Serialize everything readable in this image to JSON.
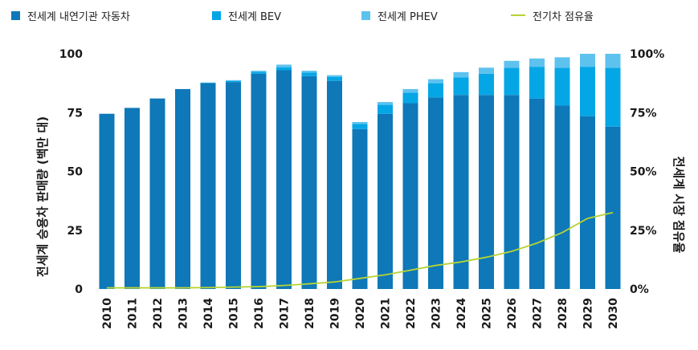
{
  "chart_data": {
    "type": "bar",
    "categories": [
      "2010",
      "2011",
      "2012",
      "2013",
      "2014",
      "2015",
      "2016",
      "2017",
      "2018",
      "2019",
      "2020",
      "2021",
      "2022",
      "2023",
      "2024",
      "2025",
      "2026",
      "2027",
      "2028",
      "2029",
      "2030"
    ],
    "series": [
      {
        "name": "전세계 내연기관 자동차",
        "kind": "stacked-bar",
        "axis": "left",
        "values": [
          74.5,
          77,
          81,
          85,
          87.5,
          88,
          91.5,
          93,
          90.5,
          88.5,
          68,
          74.5,
          79,
          81.5,
          82.5,
          82.5,
          82.5,
          81,
          78,
          73.5,
          69
        ]
      },
      {
        "name": "전세계 BEV",
        "kind": "stacked-bar",
        "axis": "left",
        "values": [
          0,
          0,
          0,
          0,
          0.2,
          0.5,
          0.8,
          1.3,
          1.5,
          1.6,
          2.2,
          3.8,
          4.5,
          6,
          7.5,
          9,
          11.5,
          13.5,
          16,
          21,
          25
        ]
      },
      {
        "name": "전세계 PHEV",
        "kind": "stacked-bar",
        "axis": "left",
        "values": [
          0,
          0,
          0,
          0,
          0.1,
          0.3,
          0.5,
          1.1,
          0.8,
          0.8,
          0.8,
          1.2,
          1.5,
          1.7,
          2.2,
          2.6,
          3,
          3.5,
          4.5,
          5.5,
          6
        ]
      },
      {
        "name": "전기차 점유율",
        "kind": "line",
        "axis": "right",
        "values": [
          0.5,
          0.5,
          0.5,
          0.5,
          0.6,
          0.8,
          1,
          1.5,
          2.2,
          3,
          4.5,
          6,
          8,
          10,
          11.5,
          13.5,
          16,
          19.5,
          24,
          30,
          32.5
        ]
      }
    ],
    "ylabel": "전세계 승용차 판매량 (백만 대)",
    "y2label": "전세계 시장 점유율",
    "ylim": [
      0,
      100
    ],
    "y2lim": [
      0,
      100
    ],
    "yticks": [
      "0",
      "25",
      "50",
      "75",
      "100"
    ],
    "y2ticks": [
      "0%",
      "25%",
      "50%",
      "75%",
      "100%"
    ],
    "grid": false,
    "legend_position": "top",
    "colors": {
      "ice": "#0e78b8",
      "bev": "#05a6e6",
      "phev": "#5ec2ee",
      "share_line": "#b7d334"
    }
  }
}
